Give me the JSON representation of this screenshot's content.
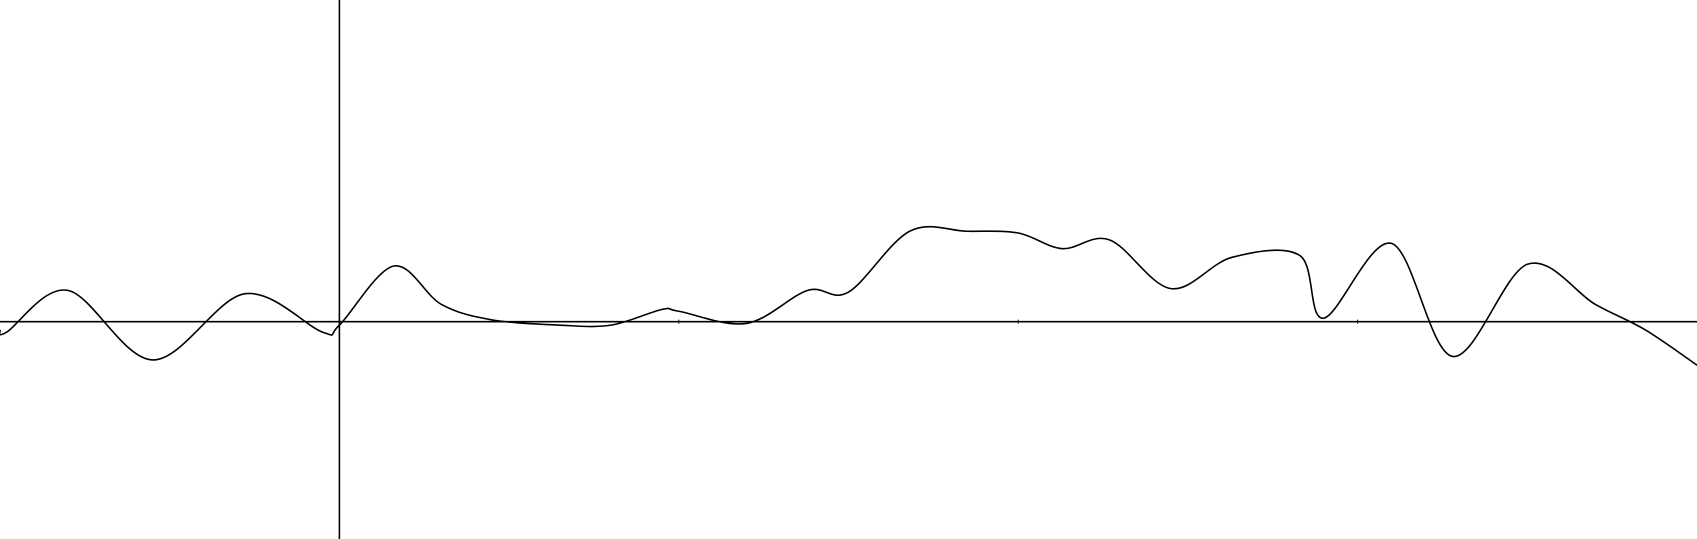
{
  "chart_data": {
    "type": "line",
    "title": "",
    "xlabel": "",
    "ylabel": "",
    "xlim": [
      -1,
      4
    ],
    "ylim": [
      -1.25,
      1.85
    ],
    "grid": false,
    "legend": "none",
    "tick_labels": false,
    "x_ticks": [
      0,
      1,
      2,
      3
    ],
    "colors": {
      "curve": "#000000",
      "axes": "#000000",
      "background": "#ffffff"
    },
    "series": [
      {
        "x": [
          -1.0,
          -0.98,
          -0.8,
          -0.55,
          -0.28,
          -0.05,
          0.0,
          0.16,
          0.3,
          0.45,
          0.65,
          0.8,
          0.95,
          1.0,
          1.2,
          1.38,
          1.5,
          1.68,
          1.85,
          2.0,
          2.13,
          2.27,
          2.45,
          2.63,
          2.83,
          2.9,
          3.1,
          3.28,
          3.5,
          3.7,
          3.85,
          4.0
        ],
        "y": [
          -0.05,
          -0.06,
          0.18,
          -0.22,
          0.16,
          -0.06,
          -0.02,
          0.32,
          0.1,
          0.01,
          -0.02,
          -0.02,
          0.07,
          0.06,
          -0.01,
          0.18,
          0.17,
          0.52,
          0.52,
          0.51,
          0.42,
          0.47,
          0.19,
          0.37,
          0.38,
          0.02,
          0.45,
          -0.2,
          0.33,
          0.1,
          -0.05,
          -0.25
        ]
      }
    ]
  }
}
